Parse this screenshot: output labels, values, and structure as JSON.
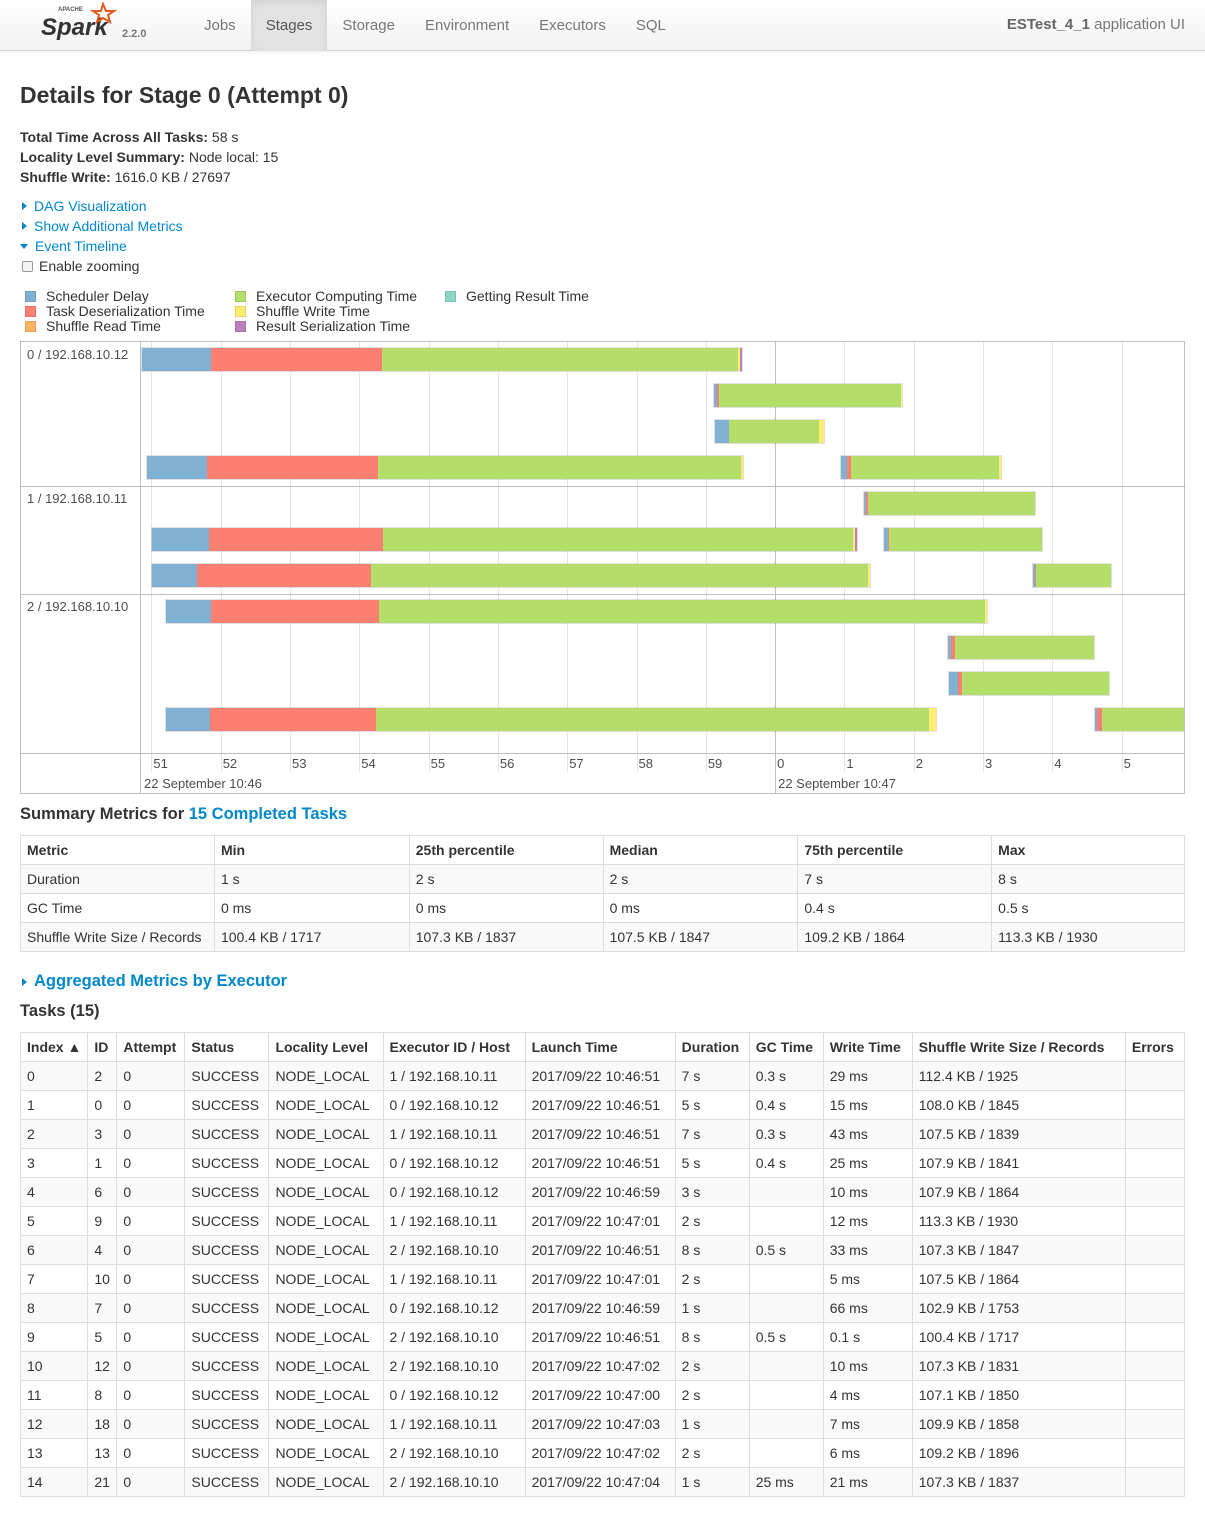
{
  "navbar": {
    "brand": {
      "logo_text": "Spark",
      "logo_super": "APACHE",
      "version": "2.2.0"
    },
    "items": [
      {
        "label": "Jobs",
        "active": false
      },
      {
        "label": "Stages",
        "active": true
      },
      {
        "label": "Storage",
        "active": false
      },
      {
        "label": "Environment",
        "active": false
      },
      {
        "label": "Executors",
        "active": false
      },
      {
        "label": "SQL",
        "active": false
      }
    ],
    "app_name": "ESTest_4_1",
    "app_suffix": " application UI"
  },
  "page": {
    "title": "Details for Stage 0 (Attempt 0)",
    "summary": [
      {
        "label": "Total Time Across All Tasks:",
        "value": " 58 s"
      },
      {
        "label": "Locality Level Summary:",
        "value": " Node local: 15"
      },
      {
        "label": "Shuffle Write:",
        "value": " 1616.0 KB / 27697"
      }
    ],
    "links": {
      "dag": "DAG Visualization",
      "additional_metrics": "Show Additional Metrics",
      "event_timeline": "Event Timeline",
      "enable_zooming": "Enable zooming"
    }
  },
  "legend": [
    {
      "label": "Scheduler Delay",
      "color": "#80B1D3"
    },
    {
      "label": "Task Deserialization Time",
      "color": "#FB8072"
    },
    {
      "label": "Shuffle Read Time",
      "color": "#FDB462"
    },
    {
      "label": "Executor Computing Time",
      "color": "#B3DE69"
    },
    {
      "label": "Shuffle Write Time",
      "color": "#FFED6F"
    },
    {
      "label": "Result Serialization Time",
      "color": "#BC80BD"
    },
    {
      "label": "Getting Result Time",
      "color": "#8DD3C7"
    }
  ],
  "timeline": {
    "executors": [
      {
        "label": "0 / 192.168.10.12"
      },
      {
        "label": "1 / 192.168.10.11"
      },
      {
        "label": "2 / 192.168.10.10"
      }
    ],
    "axis": {
      "start_second": 50.85,
      "end_second": 65.9,
      "ticks": [
        "51",
        "52",
        "53",
        "54",
        "55",
        "56",
        "57",
        "58",
        "59",
        "0",
        "1",
        "2",
        "3",
        "4",
        "5"
      ],
      "dates": [
        {
          "label": "22 September 10:46",
          "at_second": 50.85
        },
        {
          "label": "22 September 10:47",
          "at_second": 60.0
        }
      ]
    },
    "tasks": [
      {
        "executor": 0,
        "row": 0,
        "start": 50.85,
        "sched": 1.0,
        "deser": 2.48,
        "compute": 5.15,
        "write": 0.03,
        "result": 0.02
      },
      {
        "executor": 0,
        "row": 1,
        "start": 59.1,
        "sched": 0.05,
        "deser": 0.02,
        "compute": 2.67,
        "write": 0.01,
        "result": 0.0
      },
      {
        "executor": 0,
        "row": 2,
        "start": 59.12,
        "sched": 0.2,
        "deser": 0.0,
        "compute": 1.33,
        "write": 0.07,
        "result": 0.0
      },
      {
        "executor": 0,
        "row": 3,
        "start": 50.92,
        "sched": 0.87,
        "deser": 2.48,
        "compute": 5.25,
        "write": 0.03,
        "result": 0.0
      },
      {
        "executor": 0,
        "row": 3,
        "start": 60.93,
        "sched": 0.1,
        "deser": 0.05,
        "compute": 2.18,
        "write": 0.01,
        "result": 0.0
      },
      {
        "executor": 1,
        "row": 0,
        "start": 61.27,
        "sched": 0.03,
        "deser": 0.01,
        "compute": 2.45,
        "write": 0.0,
        "result": 0.0
      },
      {
        "executor": 1,
        "row": 1,
        "start": 51.0,
        "sched": 0.82,
        "deser": 2.52,
        "compute": 6.8,
        "write": 0.03,
        "result": 0.02
      },
      {
        "executor": 1,
        "row": 1,
        "start": 61.55,
        "sched": 0.06,
        "deser": 0.02,
        "compute": 2.23,
        "write": 0.0,
        "result": 0.0
      },
      {
        "executor": 1,
        "row": 2,
        "start": 51.0,
        "sched": 0.65,
        "deser": 2.52,
        "compute": 7.18,
        "write": 0.04,
        "result": 0.0
      },
      {
        "executor": 1,
        "row": 2,
        "start": 63.7,
        "sched": 0.03,
        "deser": 0.01,
        "compute": 1.12,
        "write": 0.0,
        "result": 0.0
      },
      {
        "executor": 2,
        "row": 0,
        "start": 51.2,
        "sched": 0.65,
        "deser": 2.43,
        "compute": 8.76,
        "write": 0.03,
        "result": 0.0
      },
      {
        "executor": 2,
        "row": 1,
        "start": 62.48,
        "sched": 0.05,
        "deser": 0.05,
        "compute": 2.03,
        "write": 0.0,
        "result": 0.0
      },
      {
        "executor": 2,
        "row": 2,
        "start": 62.5,
        "sched": 0.13,
        "deser": 0.05,
        "compute": 2.15,
        "write": 0.0,
        "result": 0.0
      },
      {
        "executor": 2,
        "row": 3,
        "start": 51.2,
        "sched": 0.63,
        "deser": 2.4,
        "compute": 8.0,
        "write": 0.1,
        "result": 0.0
      },
      {
        "executor": 2,
        "row": 3,
        "start": 64.6,
        "sched": 0.03,
        "deser": 0.07,
        "compute": 1.3,
        "write": 0.0,
        "result": 0.0
      }
    ]
  },
  "summary_metrics": {
    "title_prefix": "Summary Metrics for ",
    "title_link": "15 Completed Tasks",
    "headers": [
      "Metric",
      "Min",
      "25th percentile",
      "Median",
      "75th percentile",
      "Max"
    ],
    "rows": [
      [
        "Duration",
        "1 s",
        "2 s",
        "2 s",
        "7 s",
        "8 s"
      ],
      [
        "GC Time",
        "0 ms",
        "0 ms",
        "0 ms",
        "0.4 s",
        "0.5 s"
      ],
      [
        "Shuffle Write Size / Records",
        "100.4 KB / 1717",
        "107.3 KB / 1837",
        "107.5 KB / 1847",
        "109.2 KB / 1864",
        "113.3 KB / 1930"
      ]
    ]
  },
  "aggregated": {
    "label": "Aggregated Metrics by Executor"
  },
  "tasks_table": {
    "title": "Tasks (15)",
    "headers": [
      "Index ▲",
      "ID",
      "Attempt",
      "Status",
      "Locality Level",
      "Executor ID / Host",
      "Launch Time",
      "Duration",
      "GC Time",
      "Write Time",
      "Shuffle Write Size / Records",
      "Errors"
    ],
    "rows": [
      [
        "0",
        "2",
        "0",
        "SUCCESS",
        "NODE_LOCAL",
        "1 / 192.168.10.11",
        "2017/09/22 10:46:51",
        "7 s",
        "0.3 s",
        "29 ms",
        "112.4 KB / 1925",
        ""
      ],
      [
        "1",
        "0",
        "0",
        "SUCCESS",
        "NODE_LOCAL",
        "0 / 192.168.10.12",
        "2017/09/22 10:46:51",
        "5 s",
        "0.4 s",
        "15 ms",
        "108.0 KB / 1845",
        ""
      ],
      [
        "2",
        "3",
        "0",
        "SUCCESS",
        "NODE_LOCAL",
        "1 / 192.168.10.11",
        "2017/09/22 10:46:51",
        "7 s",
        "0.3 s",
        "43 ms",
        "107.5 KB / 1839",
        ""
      ],
      [
        "3",
        "1",
        "0",
        "SUCCESS",
        "NODE_LOCAL",
        "0 / 192.168.10.12",
        "2017/09/22 10:46:51",
        "5 s",
        "0.4 s",
        "25 ms",
        "107.9 KB / 1841",
        ""
      ],
      [
        "4",
        "6",
        "0",
        "SUCCESS",
        "NODE_LOCAL",
        "0 / 192.168.10.12",
        "2017/09/22 10:46:59",
        "3 s",
        "",
        "10 ms",
        "107.9 KB / 1864",
        ""
      ],
      [
        "5",
        "9",
        "0",
        "SUCCESS",
        "NODE_LOCAL",
        "1 / 192.168.10.11",
        "2017/09/22 10:47:01",
        "2 s",
        "",
        "12 ms",
        "113.3 KB / 1930",
        ""
      ],
      [
        "6",
        "4",
        "0",
        "SUCCESS",
        "NODE_LOCAL",
        "2 / 192.168.10.10",
        "2017/09/22 10:46:51",
        "8 s",
        "0.5 s",
        "33 ms",
        "107.3 KB / 1847",
        ""
      ],
      [
        "7",
        "10",
        "0",
        "SUCCESS",
        "NODE_LOCAL",
        "1 / 192.168.10.11",
        "2017/09/22 10:47:01",
        "2 s",
        "",
        "5 ms",
        "107.5 KB / 1864",
        ""
      ],
      [
        "8",
        "7",
        "0",
        "SUCCESS",
        "NODE_LOCAL",
        "0 / 192.168.10.12",
        "2017/09/22 10:46:59",
        "1 s",
        "",
        "66 ms",
        "102.9 KB / 1753",
        ""
      ],
      [
        "9",
        "5",
        "0",
        "SUCCESS",
        "NODE_LOCAL",
        "2 / 192.168.10.10",
        "2017/09/22 10:46:51",
        "8 s",
        "0.5 s",
        "0.1 s",
        "100.4 KB / 1717",
        ""
      ],
      [
        "10",
        "12",
        "0",
        "SUCCESS",
        "NODE_LOCAL",
        "2 / 192.168.10.10",
        "2017/09/22 10:47:02",
        "2 s",
        "",
        "10 ms",
        "107.3 KB / 1831",
        ""
      ],
      [
        "11",
        "8",
        "0",
        "SUCCESS",
        "NODE_LOCAL",
        "0 / 192.168.10.12",
        "2017/09/22 10:47:00",
        "2 s",
        "",
        "4 ms",
        "107.1 KB / 1850",
        ""
      ],
      [
        "12",
        "18",
        "0",
        "SUCCESS",
        "NODE_LOCAL",
        "1 / 192.168.10.11",
        "2017/09/22 10:47:03",
        "1 s",
        "",
        "7 ms",
        "109.9 KB / 1858",
        ""
      ],
      [
        "13",
        "13",
        "0",
        "SUCCESS",
        "NODE_LOCAL",
        "2 / 192.168.10.10",
        "2017/09/22 10:47:02",
        "2 s",
        "",
        "6 ms",
        "109.2 KB / 1896",
        ""
      ],
      [
        "14",
        "21",
        "0",
        "SUCCESS",
        "NODE_LOCAL",
        "2 / 192.168.10.10",
        "2017/09/22 10:47:04",
        "1 s",
        "25 ms",
        "21 ms",
        "107.3 KB / 1837",
        ""
      ]
    ]
  }
}
